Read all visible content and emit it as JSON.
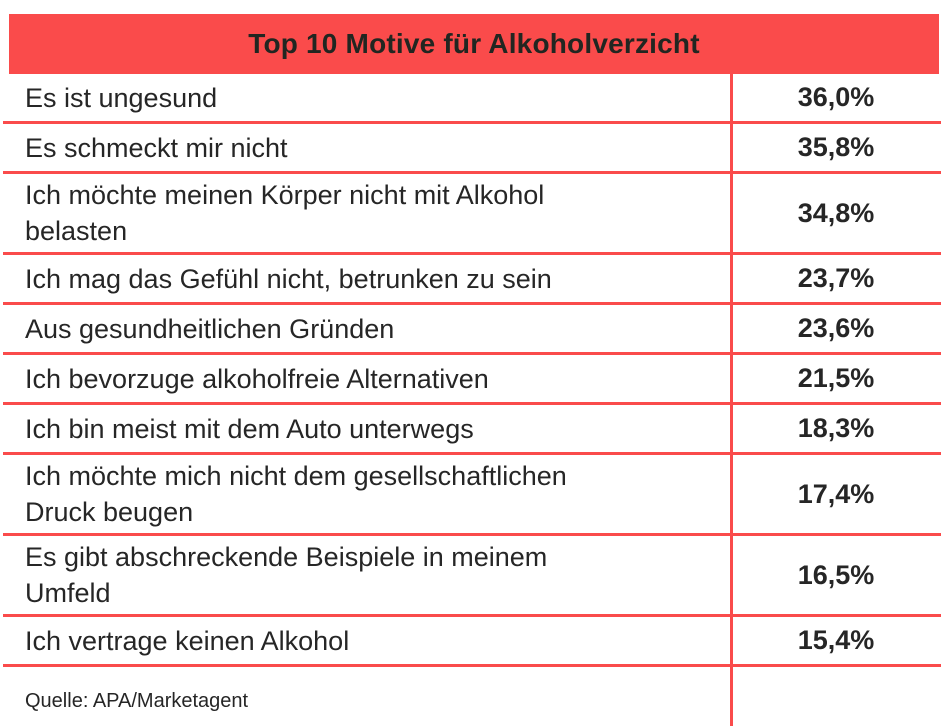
{
  "header": {
    "title": "Top 10 Motive für Alkoholverzicht"
  },
  "table": {
    "rows": [
      {
        "label": "Es ist ungesund",
        "value": "36,0%"
      },
      {
        "label": "Es schmeckt mir nicht",
        "value": "35,8%"
      },
      {
        "label": "Ich möchte meinen Körper nicht mit Alkohol\nbelasten",
        "value": "34,8%"
      },
      {
        "label": "Ich mag das Gefühl nicht, betrunken zu sein",
        "value": "23,7%"
      },
      {
        "label": "Aus gesundheitlichen Gründen",
        "value": "23,6%"
      },
      {
        "label": "Ich bevorzuge alkoholfreie Alternativen",
        "value": "21,5%"
      },
      {
        "label": "Ich bin meist mit dem Auto unterwegs",
        "value": "18,3%"
      },
      {
        "label": "Ich möchte mich nicht dem gesellschaftlichen\nDruck beugen",
        "value": "17,4%"
      },
      {
        "label": "Es gibt abschreckende Beispiele in meinem\nUmfeld",
        "value": "16,5%"
      },
      {
        "label": "Ich vertrage keinen Alkohol",
        "value": "15,4%"
      }
    ]
  },
  "footer": {
    "source": "Quelle: APA/Marketagent"
  },
  "colors": {
    "accent_red": "#FA4B4B",
    "text_dark": "#262626"
  },
  "chart_data": {
    "type": "table",
    "title": "Top 10 Motive für Alkoholverzicht",
    "categories": [
      "Es ist ungesund",
      "Es schmeckt mir nicht",
      "Ich möchte meinen Körper nicht mit Alkohol belasten",
      "Ich mag das Gefühl nicht, betrunken zu sein",
      "Aus gesundheitlichen Gründen",
      "Ich bevorzuge alkoholfreie Alternativen",
      "Ich bin meist mit dem Auto unterwegs",
      "Ich möchte mich nicht dem gesellschaftlichen Druck beugen",
      "Es gibt abschreckende Beispiele in meinem Umfeld",
      "Ich vertrage keinen Alkohol"
    ],
    "values": [
      36.0,
      35.8,
      34.8,
      23.7,
      23.6,
      21.5,
      18.3,
      17.4,
      16.5,
      15.4
    ],
    "value_unit": "%",
    "value_format": "decimal-comma",
    "source": "Quelle: APA/Marketagent"
  }
}
